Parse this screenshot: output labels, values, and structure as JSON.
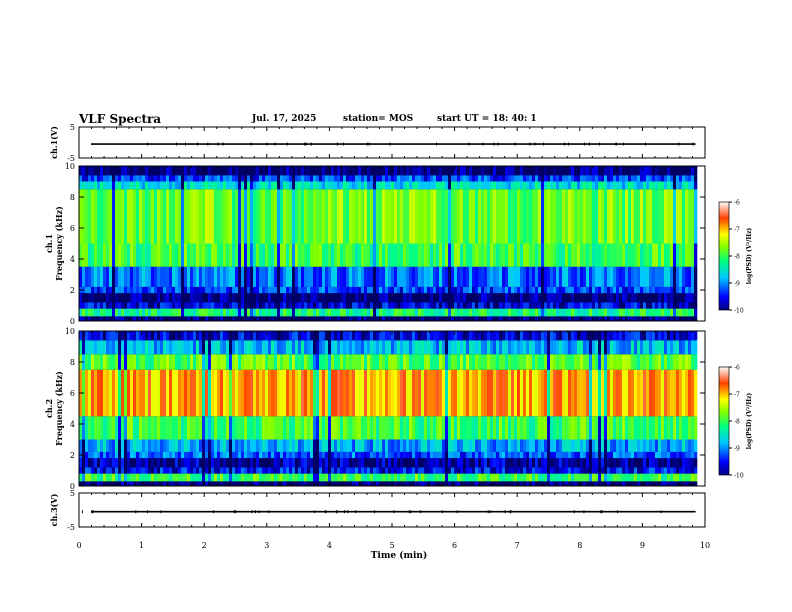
{
  "header": {
    "title": "VLF Spectra",
    "date": "Jul. 17, 2025",
    "station": "station= MOS",
    "start": "start UT = 18: 40: 1"
  },
  "chart_data": [
    {
      "type": "line",
      "ylabel": "ch.1(V)",
      "ylim": [
        -5,
        5
      ],
      "yticks": [
        "5",
        "-5"
      ],
      "x_range_min": [
        0,
        9.85
      ],
      "series": [
        {
          "values_description": "",
          "level": -0.5
        }
      ]
    },
    {
      "type": "heatmap",
      "ylabel": "ch.1 Frequency (kHz)",
      "ylim": [
        0,
        10
      ],
      "yticks": [
        "0",
        "2",
        "4",
        "6",
        "8",
        "10"
      ],
      "x_range_min": [
        0,
        9.85
      ],
      "colorbar": {
        "label": "log(PSD) (V²/Hz)",
        "range": [
          -10,
          -6
        ],
        "ticks": [
          "-6",
          "-7",
          "-8",
          "-9",
          "-10"
        ]
      },
      "bands": [
        {
          "f": [
            0.0,
            0.3
          ],
          "level": -10
        },
        {
          "f": [
            0.3,
            0.8
          ],
          "level": -8.2
        },
        {
          "f": [
            0.8,
            1.2
          ],
          "level": -9.6
        },
        {
          "f": [
            1.2,
            1.8
          ],
          "level": -10
        },
        {
          "f": [
            1.8,
            2.2
          ],
          "level": -9.3
        },
        {
          "f": [
            2.2,
            3.5
          ],
          "level": -9.1
        },
        {
          "f": [
            3.5,
            5.0
          ],
          "level": -8.0
        },
        {
          "f": [
            5.0,
            8.5
          ],
          "level": -7.8
        },
        {
          "f": [
            8.5,
            9.0
          ],
          "level": -8.6
        },
        {
          "f": [
            9.0,
            9.4
          ],
          "level": -9.3
        },
        {
          "f": [
            9.4,
            10.0
          ],
          "level": -10
        }
      ]
    },
    {
      "type": "heatmap",
      "ylabel": "ch.2 Frequency (kHz)",
      "ylim": [
        0,
        10
      ],
      "yticks": [
        "0",
        "2",
        "4",
        "6",
        "8",
        "10"
      ],
      "x_range_min": [
        0,
        9.85
      ],
      "colorbar": {
        "label": "log(PSD) (V²/Hz)",
        "range": [
          -10,
          -6
        ],
        "ticks": [
          "-6",
          "-7",
          "-8",
          "-9",
          "-10"
        ]
      },
      "bands": [
        {
          "f": [
            0.0,
            0.3
          ],
          "level": -10
        },
        {
          "f": [
            0.3,
            0.8
          ],
          "level": -8.0
        },
        {
          "f": [
            0.8,
            1.2
          ],
          "level": -9.5
        },
        {
          "f": [
            1.2,
            1.8
          ],
          "level": -9.8
        },
        {
          "f": [
            1.8,
            2.2
          ],
          "level": -9.2
        },
        {
          "f": [
            2.2,
            3.0
          ],
          "level": -8.9
        },
        {
          "f": [
            3.0,
            4.5
          ],
          "level": -8.0
        },
        {
          "f": [
            4.5,
            7.5
          ],
          "level": -6.9
        },
        {
          "f": [
            7.5,
            8.5
          ],
          "level": -7.9
        },
        {
          "f": [
            8.5,
            9.4
          ],
          "level": -8.8
        },
        {
          "f": [
            9.4,
            10.0
          ],
          "level": -9.6
        }
      ]
    },
    {
      "type": "line",
      "ylabel": "ch.3(V)",
      "ylim": [
        -5,
        5
      ],
      "yticks": [
        "5",
        "-5"
      ],
      "x_range_min": [
        0,
        9.85
      ],
      "series": [
        {
          "values_description": "",
          "level": -0.5
        }
      ]
    }
  ],
  "xaxis": {
    "label": "Time (min)",
    "ticks": [
      "0",
      "1",
      "2",
      "3",
      "4",
      "5",
      "6",
      "7",
      "8",
      "9",
      "10"
    ],
    "range": [
      0,
      10
    ]
  }
}
